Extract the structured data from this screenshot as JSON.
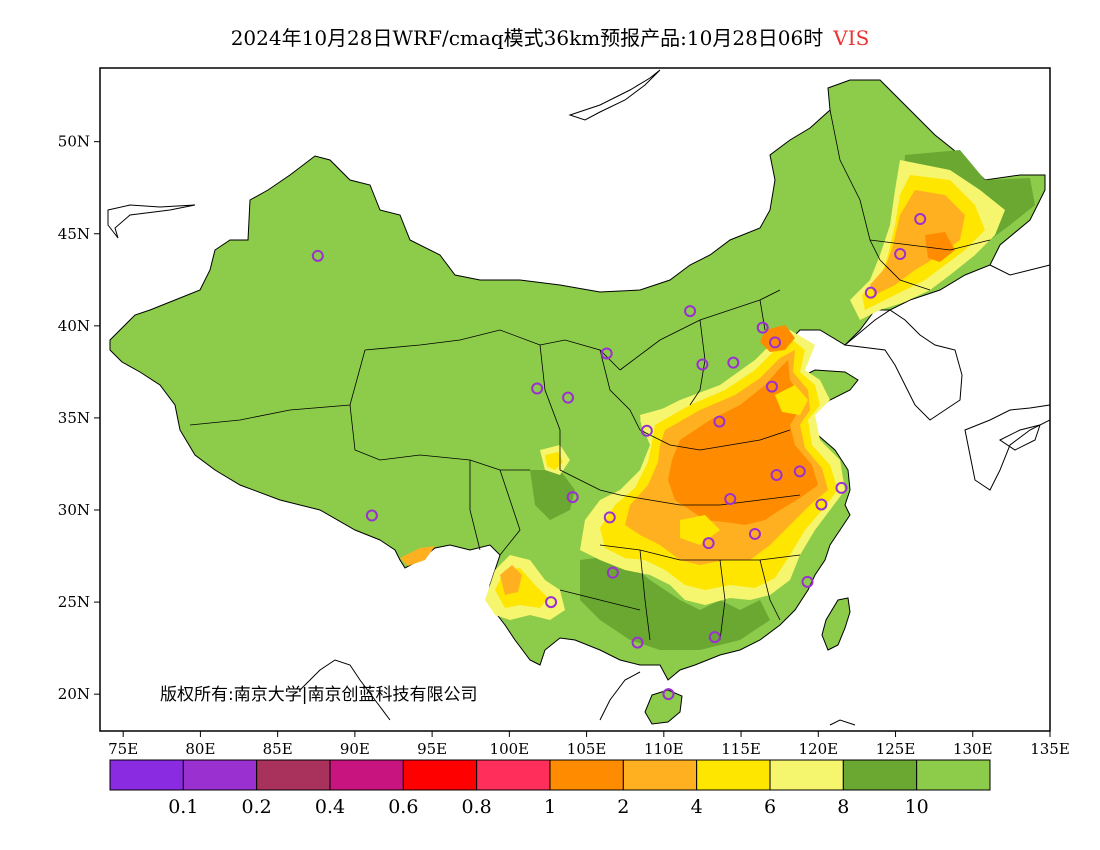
{
  "title": {
    "text": "2024年10月28日WRF/cmaq模式36km预报产品:10月28日06时",
    "variable": "VIS"
  },
  "axes": {
    "lat_labels": [
      "50N",
      "45N",
      "40N",
      "35N",
      "30N",
      "25N",
      "20N"
    ],
    "lon_labels": [
      "75E",
      "80E",
      "85E",
      "90E",
      "95E",
      "100E",
      "105E",
      "110E",
      "115E",
      "120E",
      "125E",
      "130E",
      "135E"
    ]
  },
  "colorbar": {
    "colors": [
      "#8a2be2",
      "#9b30d0",
      "#a8325c",
      "#c8147e",
      "#ff0000",
      "#ff2e5a",
      "#ff8c00",
      "#ffb020",
      "#ffe600",
      "#f5f56e",
      "#6aa832",
      "#8ccc4a"
    ],
    "labels": [
      "0.1",
      "0.2",
      "0.4",
      "0.6",
      "0.8",
      "1",
      "2",
      "4",
      "6",
      "8",
      "10"
    ]
  },
  "copyright": {
    "text": "版权所有:南京大学|南京创蓝科技有限公司"
  },
  "colors": {
    "land_base": "#8ccc4a",
    "marker": "#9b30d0",
    "vis_2": "#ff8c00",
    "vis_4": "#ffb020",
    "vis_6": "#ffe600",
    "vis_8": "#f5f56e",
    "vis_10_dark": "#6aa832"
  },
  "stations": [
    {
      "lon": 87.6,
      "lat": 43.8
    },
    {
      "lon": 91.1,
      "lat": 29.7
    },
    {
      "lon": 101.8,
      "lat": 36.6
    },
    {
      "lon": 103.8,
      "lat": 36.1
    },
    {
      "lon": 106.3,
      "lat": 38.5
    },
    {
      "lon": 111.7,
      "lat": 40.8
    },
    {
      "lon": 112.5,
      "lat": 37.9
    },
    {
      "lon": 114.5,
      "lat": 38.0
    },
    {
      "lon": 116.4,
      "lat": 39.9
    },
    {
      "lon": 117.2,
      "lat": 39.1
    },
    {
      "lon": 108.9,
      "lat": 34.3
    },
    {
      "lon": 113.6,
      "lat": 34.8
    },
    {
      "lon": 117.0,
      "lat": 36.7
    },
    {
      "lon": 104.1,
      "lat": 30.7
    },
    {
      "lon": 106.5,
      "lat": 29.6
    },
    {
      "lon": 114.3,
      "lat": 30.6
    },
    {
      "lon": 117.3,
      "lat": 31.9
    },
    {
      "lon": 118.8,
      "lat": 32.1
    },
    {
      "lon": 121.5,
      "lat": 31.2
    },
    {
      "lon": 120.2,
      "lat": 30.3
    },
    {
      "lon": 112.9,
      "lat": 28.2
    },
    {
      "lon": 115.9,
      "lat": 28.7
    },
    {
      "lon": 119.3,
      "lat": 26.1
    },
    {
      "lon": 106.7,
      "lat": 26.6
    },
    {
      "lon": 102.7,
      "lat": 25.0
    },
    {
      "lon": 108.3,
      "lat": 22.8
    },
    {
      "lon": 113.3,
      "lat": 23.1
    },
    {
      "lon": 110.3,
      "lat": 20.0
    },
    {
      "lon": 123.4,
      "lat": 41.8
    },
    {
      "lon": 125.3,
      "lat": 43.9
    },
    {
      "lon": 126.6,
      "lat": 45.8
    }
  ]
}
